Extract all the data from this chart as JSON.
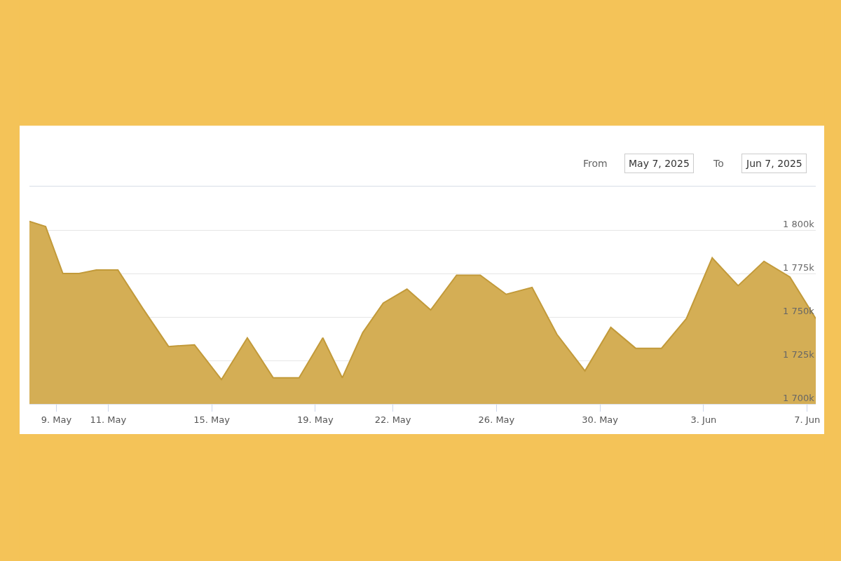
{
  "chart_data": {
    "type": "area",
    "annotations": [
      "From",
      "May 7, 2025",
      "To",
      "Jun 7, 2025"
    ],
    "x": [
      "2025-05-07T23:00",
      "2025-05-08T14:00",
      "2025-05-09T06:00",
      "2025-05-09T21:00",
      "2025-05-10T13:00",
      "2025-05-11T09:00",
      "2025-05-12T08:00",
      "2025-05-13T08:00",
      "2025-05-14T08:00",
      "2025-05-15T09:00",
      "2025-05-16T09:00",
      "2025-05-17T09:00",
      "2025-05-18T09:00",
      "2025-05-19T07:00",
      "2025-05-20T01:00",
      "2025-05-20T20:00",
      "2025-05-21T15:00",
      "2025-05-22T13:00",
      "2025-05-23T11:00",
      "2025-05-24T11:00",
      "2025-05-25T09:00",
      "2025-05-26T09:00",
      "2025-05-27T09:00",
      "2025-05-28T08:00",
      "2025-05-29T10:00",
      "2025-05-30T10:00",
      "2025-05-31T09:00",
      "2025-06-01T09:00",
      "2025-06-02T08:00",
      "2025-06-03T08:00",
      "2025-06-04T08:00",
      "2025-06-05T08:00",
      "2025-06-06T08:00",
      "2025-06-07T08:00"
    ],
    "series": [
      {
        "color": "#d4ae55",
        "values": [
          1805,
          1802,
          1775,
          1775,
          1777,
          1777,
          1755,
          1733,
          1734,
          1714,
          1738,
          1715,
          1715,
          1738,
          1715,
          1741,
          1758,
          1766,
          1754,
          1774,
          1774,
          1763,
          1767,
          1740,
          1719,
          1744,
          1732,
          1732,
          1749,
          1784,
          1768,
          1782,
          1773,
          1749
        ]
      }
    ],
    "xlim": [
      "2025-05-07T23:00",
      "2025-06-07T08:00"
    ],
    "xticks": [
      {
        "value": "2025-05-09",
        "label": "9. May"
      },
      {
        "value": "2025-05-11",
        "label": "11. May"
      },
      {
        "value": "2025-05-15",
        "label": "15. May"
      },
      {
        "value": "2025-05-19",
        "label": "19. May"
      },
      {
        "value": "2025-05-22",
        "label": "22. May"
      },
      {
        "value": "2025-05-26",
        "label": "26. May"
      },
      {
        "value": "2025-05-30",
        "label": "30. May"
      },
      {
        "value": "2025-06-03",
        "label": "3. Jun"
      },
      {
        "value": "2025-06-07",
        "label": "7. Jun"
      }
    ],
    "ylim": [
      1700,
      1825
    ],
    "yticks": [
      {
        "value": 1700,
        "label": "1 700k"
      },
      {
        "value": 1725,
        "label": "1 725k"
      },
      {
        "value": 1750,
        "label": "1 750k"
      },
      {
        "value": 1775,
        "label": "1 775k"
      },
      {
        "value": 1800,
        "label": "1 800k"
      },
      {
        "value": 1825,
        "label": null
      }
    ],
    "grid": "y"
  }
}
